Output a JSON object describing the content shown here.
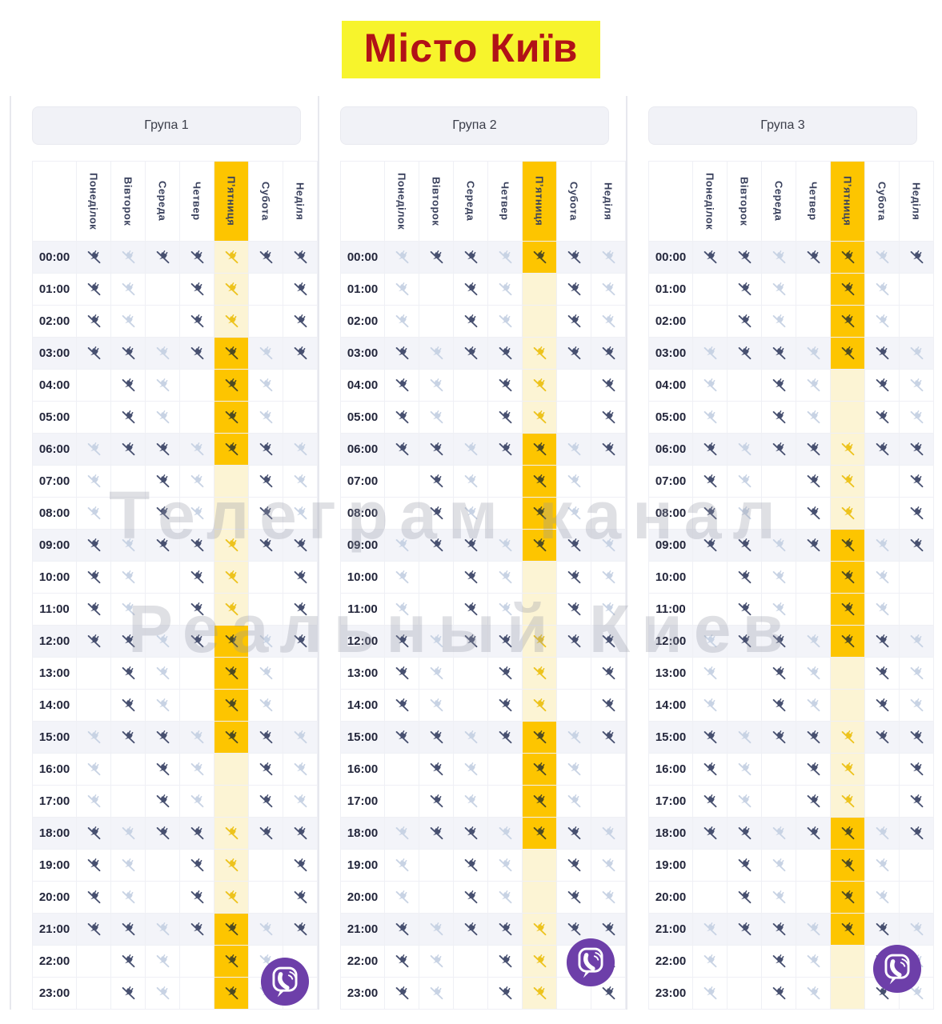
{
  "title": "Місто Київ",
  "watermark": {
    "line1": "Телеграм канал",
    "line2": "Реальный Киев"
  },
  "days": [
    "Понеділок",
    "Вівторок",
    "Середа",
    "Четвер",
    "П’ятниця",
    "Субота",
    "Неділя"
  ],
  "highlight_day_index": 4,
  "hours": [
    "00:00",
    "01:00",
    "02:00",
    "03:00",
    "04:00",
    "05:00",
    "06:00",
    "07:00",
    "08:00",
    "09:00",
    "10:00",
    "11:00",
    "12:00",
    "13:00",
    "14:00",
    "15:00",
    "16:00",
    "17:00",
    "18:00",
    "19:00",
    "20:00",
    "21:00",
    "22:00",
    "23:00"
  ],
  "status_legend": {
    "d": "outage",
    "l": "possible-outage",
    ".": "no-outage"
  },
  "icons": {
    "cell_icon": "power-off-icon",
    "badge_icon": "viber-icon"
  },
  "groups": [
    {
      "label": "Група 1",
      "day_patterns": [
        "dddd..llldddd..llldddd..",
        "llldddd..llldddd..lllddd",
        "d..llldddd..llldddd..lll",
        "dddd..llldddd..llldddd..",
        "llldddd..llldddd..lllddd",
        "d..llldddd..llldddd..lll",
        "dddd..llldddd..llldddd.."
      ]
    },
    {
      "label": "Група 2",
      "day_patterns": [
        "llldddd..llldddd..lllddd",
        "d..llldddd..llldddd..lll",
        "dddd..llldddd..llldddd..",
        "llldddd..llldddd..lllddd",
        "d..llldddd..llldddd..lll",
        "dddd..llldddd..llldddd..",
        "llldddd..llldddd..lllddd"
      ]
    },
    {
      "label": "Група 3",
      "day_patterns": [
        "d..llldddd..llldddd..lll",
        "dddd..llldddd..llldddd..",
        "llldddd..llldddd..lllddd",
        "d..llldddd..llldddd..lll",
        "dddd..llldddd..llldddd..",
        "llldddd..llldddd..lllddd",
        "d..llldddd..llldddd..lll"
      ]
    }
  ],
  "colors": {
    "highlight": "#fdc500",
    "highlight_pale": "#fcf4d4",
    "outage_icon": "#475070",
    "possible_icon": "#c8d3e4",
    "friday_outage_icon": "#4e4b22",
    "friday_possible_icon": "#edc31d",
    "band_row": "#f3f4f9",
    "day_text": "#39405c",
    "title_bg": "#f7f42c",
    "title_text": "#b11217",
    "viber": "#6d3fa9",
    "watermark": "#969aa6"
  }
}
